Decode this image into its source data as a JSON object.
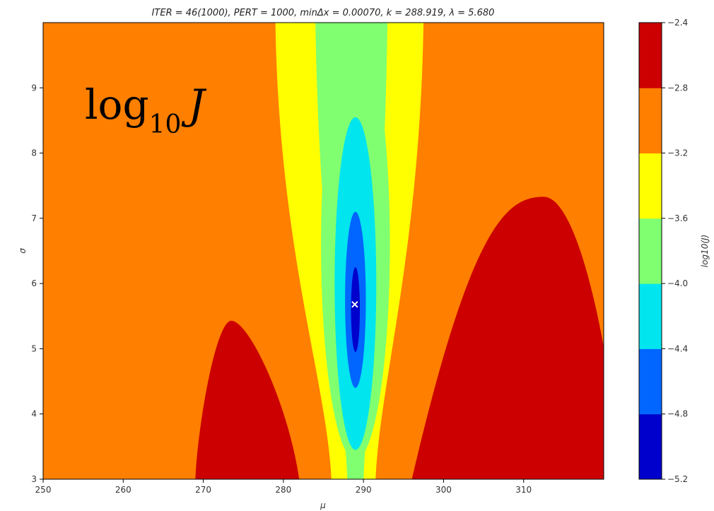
{
  "chart_data": {
    "type": "contour",
    "title": "ITER = 46(1000), PERT = 1000, minΔx = 0.00070, k = 288.919, λ = 5.680",
    "overlay_text": "log",
    "overlay_subscript": "10",
    "overlay_symbol": "J",
    "xlabel": "μ",
    "ylabel": "σ",
    "colorbar_label": "log10(J)",
    "xlim": [
      250,
      320
    ],
    "ylim": [
      3,
      10
    ],
    "xticks": [
      250,
      260,
      270,
      280,
      290,
      300,
      310
    ],
    "yticks": [
      3,
      4,
      5,
      6,
      7,
      8,
      9
    ],
    "xtick_labels": [
      "250",
      "260",
      "270",
      "280",
      "290",
      "300",
      "310"
    ],
    "ytick_labels": [
      "3",
      "4",
      "5",
      "6",
      "7",
      "8",
      "9"
    ],
    "levels": [
      -5.2,
      -4.8,
      -4.4,
      -4.0,
      -3.6,
      -3.2,
      -2.8,
      -2.4
    ],
    "level_labels": [
      "−5.2",
      "−4.8",
      "−4.4",
      "−4.0",
      "−3.6",
      "−3.2",
      "−2.8",
      "−2.4"
    ],
    "level_colors": [
      "#0000cc",
      "#0066ff",
      "#00e5ee",
      "#80ff70",
      "#ffff00",
      "#ff7f00",
      "#cc0000"
    ],
    "minimum_marker": {
      "x": 288.919,
      "y": 5.68
    },
    "regions": [
      {
        "level_color": "#ff7f00",
        "shape": "background"
      },
      {
        "level_color": "#cc0000",
        "shape": "hump",
        "x_left": 269,
        "x_peak": 273.5,
        "x_right": 282,
        "y_peak": 5.43
      },
      {
        "level_color": "#cc0000",
        "shape": "hump",
        "x_left": 296,
        "x_peak": 312.5,
        "x_right": 320,
        "y_peak": 7.33,
        "y_at_right": 4.9
      },
      {
        "level_color": "#ffff00",
        "shape": "valley",
        "x_left_bottom": 286,
        "x_right_bottom": 291.5,
        "x_left_top": 279,
        "x_right_top": 297.5
      },
      {
        "level_color": "#80ff70",
        "shape": "valley",
        "x_left_bottom": 288,
        "x_right_bottom": 290,
        "x_left_top": 284,
        "x_right_top": 293
      },
      {
        "level_color": "#80ff70",
        "shape": "ellipse",
        "cx": 289,
        "cy": 6.6,
        "rx": 4.3,
        "ry": 3.3
      },
      {
        "level_color": "#00e5ee",
        "shape": "ellipse",
        "cx": 289,
        "cy": 6.0,
        "rx": 2.6,
        "ry": 2.55
      },
      {
        "level_color": "#0066ff",
        "shape": "ellipse",
        "cx": 289,
        "cy": 5.75,
        "rx": 1.3,
        "ry": 1.35
      },
      {
        "level_color": "#0000cc",
        "shape": "ellipse",
        "cx": 289,
        "cy": 5.6,
        "rx": 0.55,
        "ry": 0.65
      }
    ]
  }
}
